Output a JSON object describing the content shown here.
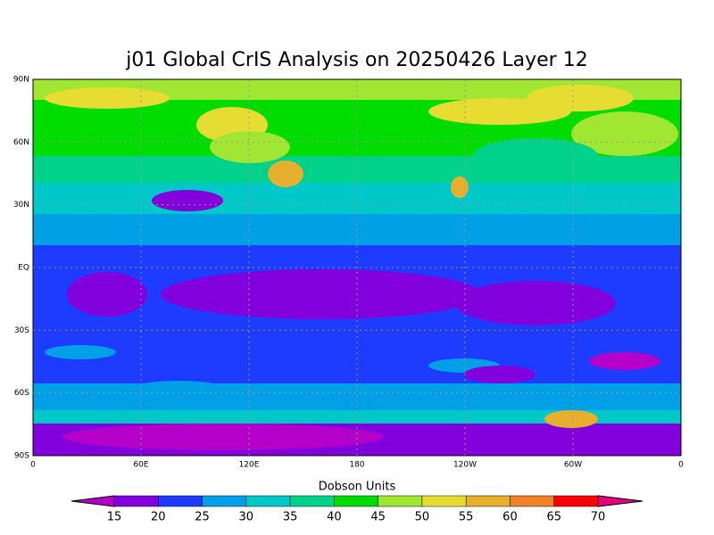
{
  "title": "j01 Global CrIS Analysis on 20250426 Layer 12",
  "map": {
    "x_labels": [
      "0",
      "60E",
      "120E",
      "180",
      "120W",
      "60W",
      "0"
    ],
    "y_labels": [
      "90N",
      "60N",
      "30N",
      "EQ",
      "30S",
      "60S",
      "90S"
    ]
  },
  "colorbar": {
    "label": "Dobson Units",
    "levels": [
      15,
      20,
      25,
      30,
      35,
      40,
      45,
      50,
      55,
      60,
      65,
      70
    ],
    "colors": [
      "#b400c8",
      "#8200dc",
      "#1e3cff",
      "#00a0e6",
      "#00c8c8",
      "#00d28c",
      "#00dc00",
      "#a0e632",
      "#e6dc32",
      "#e6af2d",
      "#f08228",
      "#fa0000",
      "#e6007c"
    ]
  }
}
